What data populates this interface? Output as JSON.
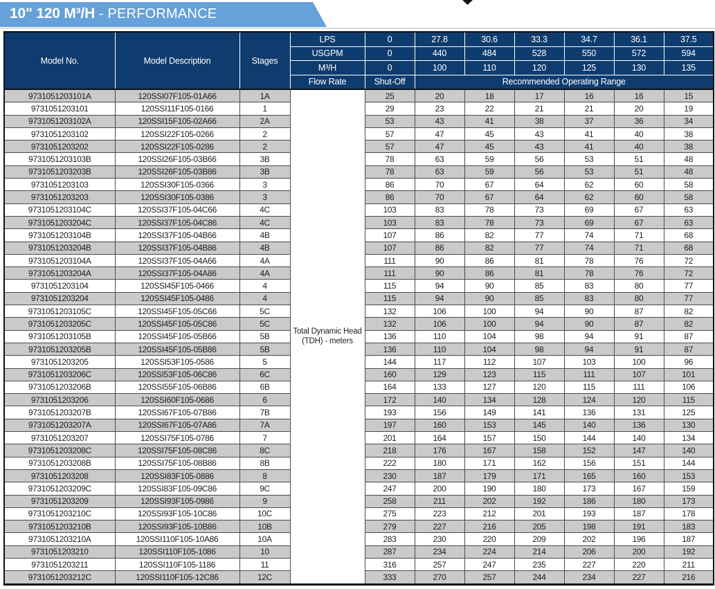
{
  "banner": {
    "title_bold": "10\" 120 M³/H",
    "title_regular": " - PERFORMANCE"
  },
  "colors": {
    "banner_blue": "#66a1d9",
    "header_navy": "#0f3c6e",
    "row_stripe_gray": "#cacaca"
  },
  "table": {
    "columns": {
      "model_no": "Model No.",
      "model_description": "Model Description",
      "stages": "Stages"
    },
    "flow_rows": [
      {
        "label": "LPS",
        "values": [
          "0",
          "27.8",
          "30.6",
          "33.3",
          "34.7",
          "36.1",
          "37.5"
        ]
      },
      {
        "label": "USGPM",
        "values": [
          "0",
          "440",
          "484",
          "528",
          "550",
          "572",
          "594"
        ]
      },
      {
        "label": "M³/H",
        "values": [
          "0",
          "100",
          "110",
          "120",
          "125",
          "130",
          "135"
        ]
      }
    ],
    "flow_rate_label": "Flow Rate",
    "shut_off_label": "Shut-Off",
    "operating_range_label": "Recommended Operating Range",
    "tdh_label_line1": "Total Dynamic Head",
    "tdh_label_line2": "(TDH) - meters",
    "rows": [
      {
        "model": "9731051203101A",
        "description": "120SSI07F105-01A66",
        "stages": "1A",
        "values": [
          25,
          20,
          18,
          17,
          16,
          16,
          15
        ]
      },
      {
        "model": "9731051203101",
        "description": "120SSI11F105-0166",
        "stages": "1",
        "values": [
          29,
          23,
          22,
          21,
          21,
          20,
          19
        ]
      },
      {
        "model": "9731051203102A",
        "description": "120SSI15F105-02A66",
        "stages": "2A",
        "values": [
          53,
          43,
          41,
          38,
          37,
          36,
          34
        ]
      },
      {
        "model": "9731051203102",
        "description": "120SSI22F105-0266",
        "stages": "2",
        "values": [
          57,
          47,
          45,
          43,
          41,
          40,
          38
        ]
      },
      {
        "model": "9731051203202",
        "description": "120SSI22F105-0286",
        "stages": "2",
        "values": [
          57,
          47,
          45,
          43,
          41,
          40,
          38
        ]
      },
      {
        "model": "9731051203103B",
        "description": "120SSI26F105-03B66",
        "stages": "3B",
        "values": [
          78,
          63,
          59,
          56,
          53,
          51,
          48
        ]
      },
      {
        "model": "9731051203203B",
        "description": "120SSI26F105-03B86",
        "stages": "3B",
        "values": [
          78,
          63,
          59,
          56,
          53,
          51,
          48
        ]
      },
      {
        "model": "9731051203103",
        "description": "120SSI30F105-0366",
        "stages": "3",
        "values": [
          86,
          70,
          67,
          64,
          62,
          60,
          58
        ]
      },
      {
        "model": "9731051203203",
        "description": "120SSI30F105-0386",
        "stages": "3",
        "values": [
          86,
          70,
          67,
          64,
          62,
          60,
          58
        ]
      },
      {
        "model": "9731051203104C",
        "description": "120SSI37F105-04C66",
        "stages": "4C",
        "values": [
          103,
          83,
          78,
          73,
          69,
          67,
          63
        ]
      },
      {
        "model": "9731051203204C",
        "description": "120SSI37F105-04C86",
        "stages": "4C",
        "values": [
          103,
          83,
          78,
          73,
          69,
          67,
          63
        ]
      },
      {
        "model": "9731051203104B",
        "description": "120SSI37F105-04B66",
        "stages": "4B",
        "values": [
          107,
          86,
          82,
          77,
          74,
          71,
          68
        ]
      },
      {
        "model": "9731051203204B",
        "description": "120SSI37F105-04B86",
        "stages": "4B",
        "values": [
          107,
          86,
          82,
          77,
          74,
          71,
          68
        ]
      },
      {
        "model": "9731051203104A",
        "description": "120SSI37F105-04A66",
        "stages": "4A",
        "values": [
          111,
          90,
          86,
          81,
          78,
          76,
          72
        ]
      },
      {
        "model": "9731051203204A",
        "description": "120SSI37F105-04A86",
        "stages": "4A",
        "values": [
          111,
          90,
          86,
          81,
          78,
          76,
          72
        ]
      },
      {
        "model": "9731051203104",
        "description": "120SSI45F105-0466",
        "stages": "4",
        "values": [
          115,
          94,
          90,
          85,
          83,
          80,
          77
        ]
      },
      {
        "model": "9731051203204",
        "description": "120SSI45F105-0486",
        "stages": "4",
        "values": [
          115,
          94,
          90,
          85,
          83,
          80,
          77
        ]
      },
      {
        "model": "9731051203105C",
        "description": "120SSI45F105-05C66",
        "stages": "5C",
        "values": [
          132,
          106,
          100,
          94,
          90,
          87,
          82
        ]
      },
      {
        "model": "9731051203205C",
        "description": "120SSI45F105-05C86",
        "stages": "5C",
        "values": [
          132,
          106,
          100,
          94,
          90,
          87,
          82
        ]
      },
      {
        "model": "9731051203105B",
        "description": "120SSI45F105-05B66",
        "stages": "5B",
        "values": [
          136,
          110,
          104,
          98,
          94,
          91,
          87
        ]
      },
      {
        "model": "9731051203205B",
        "description": "120SSI45F105-05B86",
        "stages": "5B",
        "values": [
          136,
          110,
          104,
          98,
          94,
          91,
          87
        ]
      },
      {
        "model": "9731051203205",
        "description": "120SSI53F105-0586",
        "stages": "5",
        "values": [
          144,
          117,
          112,
          107,
          103,
          100,
          96
        ]
      },
      {
        "model": "9731051203206C",
        "description": "120SSI53F105-06C86",
        "stages": "6C",
        "values": [
          160,
          129,
          123,
          115,
          111,
          107,
          101
        ]
      },
      {
        "model": "9731051203206B",
        "description": "120SSI55F105-06B86",
        "stages": "6B",
        "values": [
          164,
          133,
          127,
          120,
          115,
          111,
          106
        ]
      },
      {
        "model": "9731051203206",
        "description": "120SSI60F105-0686",
        "stages": "6",
        "values": [
          172,
          140,
          134,
          128,
          124,
          120,
          115
        ]
      },
      {
        "model": "9731051203207B",
        "description": "120SSI67F105-07B86",
        "stages": "7B",
        "values": [
          193,
          156,
          149,
          141,
          136,
          131,
          125
        ]
      },
      {
        "model": "9731051203207A",
        "description": "120SSI67F105-07A86",
        "stages": "7A",
        "values": [
          197,
          160,
          153,
          145,
          140,
          136,
          130
        ]
      },
      {
        "model": "9731051203207",
        "description": "120SSI75F105-0786",
        "stages": "7",
        "values": [
          201,
          164,
          157,
          150,
          144,
          140,
          134
        ]
      },
      {
        "model": "9731051203208C",
        "description": "120SSI75F105-08C86",
        "stages": "8C",
        "values": [
          218,
          176,
          167,
          158,
          152,
          147,
          140
        ]
      },
      {
        "model": "9731051203208B",
        "description": "120SSI75F105-08B86",
        "stages": "8B",
        "values": [
          222,
          180,
          171,
          162,
          156,
          151,
          144
        ]
      },
      {
        "model": "9731051203208",
        "description": "120SSI83F105-0886",
        "stages": "8",
        "values": [
          230,
          187,
          179,
          171,
          165,
          160,
          153
        ]
      },
      {
        "model": "9731051203209C",
        "description": "120SSI83F105-09C86",
        "stages": "9C",
        "values": [
          247,
          200,
          190,
          180,
          173,
          167,
          159
        ]
      },
      {
        "model": "9731051203209",
        "description": "120SSI93F105-0986",
        "stages": "9",
        "values": [
          258,
          211,
          202,
          192,
          186,
          180,
          173
        ]
      },
      {
        "model": "9731051203210C",
        "description": "120SSI93F105-10C86",
        "stages": "10C",
        "values": [
          275,
          223,
          212,
          201,
          193,
          187,
          178
        ]
      },
      {
        "model": "9731051203210B",
        "description": "120SSI93F105-10B86",
        "stages": "10B",
        "values": [
          279,
          227,
          216,
          205,
          198,
          191,
          183
        ]
      },
      {
        "model": "9731051203210A",
        "description": "120SSI110F105-10A86",
        "stages": "10A",
        "values": [
          283,
          230,
          220,
          209,
          202,
          196,
          187
        ]
      },
      {
        "model": "9731051203210",
        "description": "120SSI110F105-1086",
        "stages": "10",
        "values": [
          287,
          234,
          224,
          214,
          206,
          200,
          192
        ]
      },
      {
        "model": "9731051203211",
        "description": "120SSI110F105-1186",
        "stages": "11",
        "values": [
          316,
          257,
          247,
          235,
          227,
          220,
          211
        ]
      },
      {
        "model": "9731051203212C",
        "description": "120SSI110F105-12C86",
        "stages": "12C",
        "values": [
          333,
          270,
          257,
          244,
          234,
          227,
          216
        ]
      }
    ]
  }
}
